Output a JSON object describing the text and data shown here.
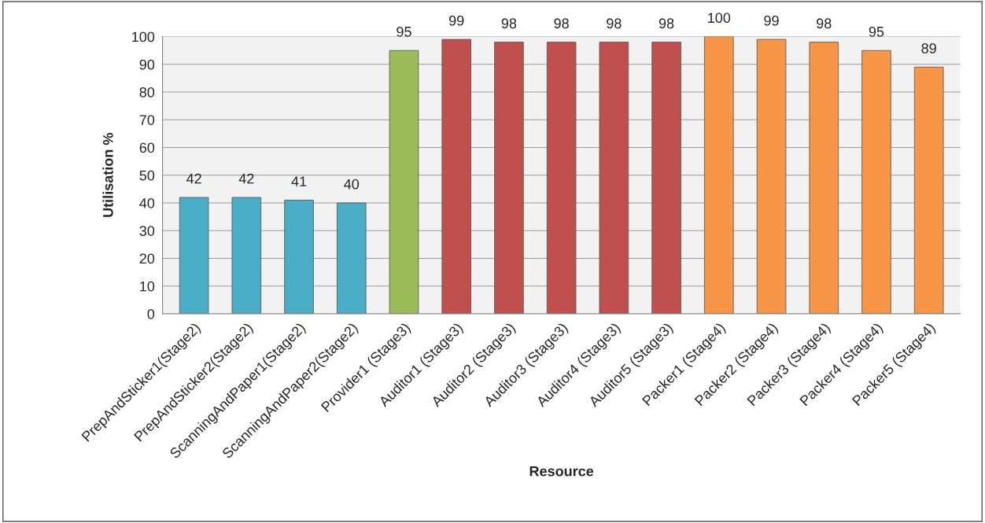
{
  "chart_data": {
    "type": "bar",
    "xlabel": "Resource",
    "ylabel": "Utilisation %",
    "categories": [
      "PrepAndSticker1(Stage2)",
      "PrepAndSticker2(Stage2)",
      "ScanningAndPaper1(Stage2)",
      "ScanningAndPaper2(Stage2)",
      "Provider1 (Stage3)",
      "Auditor1 (Stage3)",
      "Auditor2 (Stage3)",
      "Auditor3 (Stage3)",
      "Auditor4 (Stage3)",
      "Auditor5 (Stage3)",
      "Packer1 (Stage4)",
      "Packer2 (Stage4)",
      "Packer3 (Stage4)",
      "Packer4 (Stage4)",
      "Packer5 (Stage4)"
    ],
    "values": [
      42,
      42,
      41,
      40,
      95,
      99,
      98,
      98,
      98,
      98,
      100,
      99,
      98,
      95,
      89
    ],
    "colors": [
      "#4bacc6",
      "#4bacc6",
      "#4bacc6",
      "#4bacc6",
      "#9bbb59",
      "#c0504d",
      "#c0504d",
      "#c0504d",
      "#c0504d",
      "#c0504d",
      "#f79646",
      "#f79646",
      "#f79646",
      "#f79646",
      "#f79646"
    ],
    "ylim": [
      0,
      100
    ],
    "yticks": [
      0,
      10,
      20,
      30,
      40,
      50,
      60,
      70,
      80,
      90,
      100
    ],
    "grid": "y",
    "data_labels": true
  }
}
